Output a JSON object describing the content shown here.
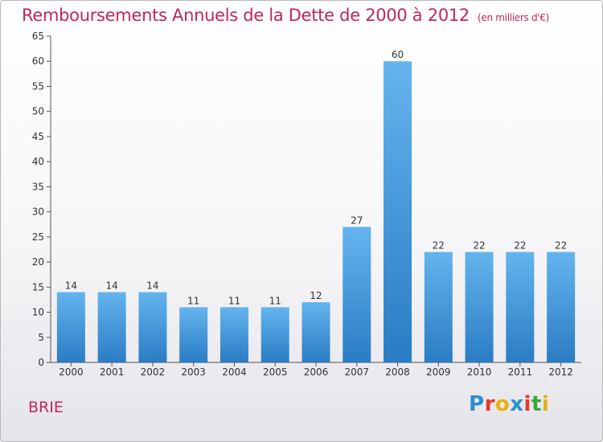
{
  "header": {
    "title": "Remboursements Annuels de la Dette de 2000 à 2012",
    "subtitle": "(en milliers d'€)"
  },
  "footer": {
    "commune": "BRIE",
    "logo_text": "Proxiti"
  },
  "colors": {
    "accent": "#c0265e",
    "bar_light": "#64b4ee",
    "bar_dark": "#2a7cc4",
    "logo_letters": [
      "#2a8fd0",
      "#e8372c",
      "#e8b010",
      "#2a8fd0",
      "#e8372c",
      "#37a835",
      "#e8b010"
    ]
  },
  "chart_data": {
    "type": "bar",
    "title": "Remboursements Annuels de la Dette de 2000 à 2012",
    "unit": "(en milliers d'€)",
    "xlabel": "",
    "ylabel": "",
    "categories": [
      "2000",
      "2001",
      "2002",
      "2003",
      "2004",
      "2005",
      "2006",
      "2007",
      "2008",
      "2009",
      "2010",
      "2011",
      "2012"
    ],
    "values": [
      14,
      14,
      14,
      11,
      11,
      11,
      12,
      27,
      60,
      22,
      22,
      22,
      22
    ],
    "ylim": [
      0,
      65
    ],
    "yticks": [
      0,
      5,
      10,
      15,
      20,
      25,
      30,
      35,
      40,
      45,
      50,
      55,
      60,
      65
    ],
    "grid": false,
    "data_labels": true
  }
}
